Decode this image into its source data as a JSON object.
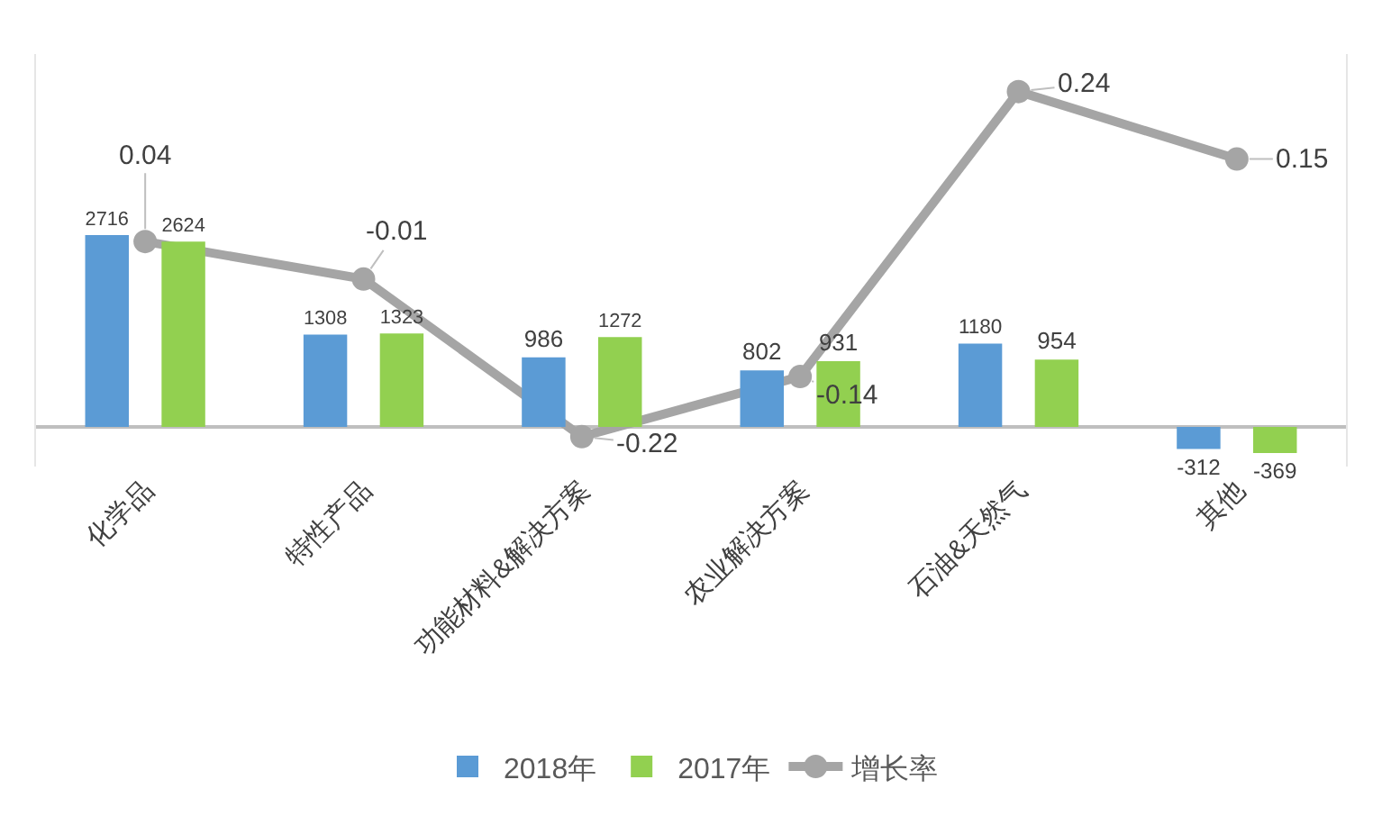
{
  "chart_data": {
    "type": "bar",
    "categories": [
      "化学品",
      "特性产品",
      "功能材料&解决方案",
      "农业解决方案",
      "石油&天然气",
      "其他"
    ],
    "series": [
      {
        "name": "2018年",
        "color": "#5b9bd5",
        "values": [
          2716,
          1308,
          986,
          802,
          1180,
          -312
        ]
      },
      {
        "name": "2017年",
        "color": "#92d050",
        "values": [
          2624,
          1323,
          1272,
          931,
          954,
          -369
        ]
      },
      {
        "name": "增长率",
        "type": "line",
        "axis": "y2",
        "color": "#a5a5a5",
        "marker": "circle",
        "values": [
          0.04,
          -0.01,
          -0.22,
          -0.14,
          0.24,
          0.15
        ]
      }
    ],
    "ylim": [
      -560,
      5280
    ],
    "y2lim": [
      -0.26,
      0.29
    ],
    "tick_labels": "x",
    "grid": false,
    "legend": "bottom",
    "data_labels": true
  }
}
